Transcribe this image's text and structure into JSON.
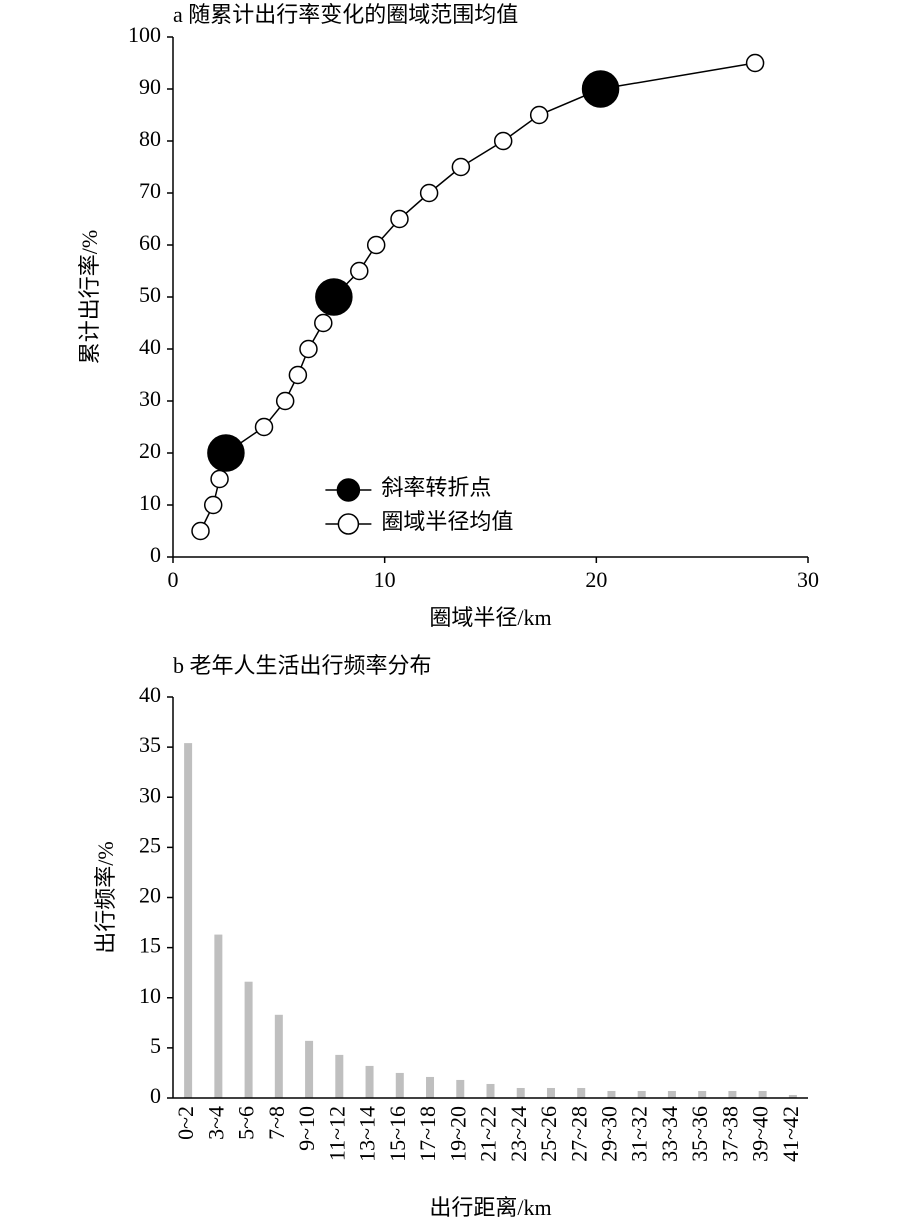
{
  "chart_data": [
    {
      "type": "line",
      "title": "a 随累计出行率变化的圈域范围均值",
      "x_label": "圈域半径/km",
      "y_label": "累计出行率/%",
      "xlim": [
        0,
        30
      ],
      "xticks": [
        0,
        10,
        20,
        30
      ],
      "ylim": [
        0,
        100
      ],
      "yticks": [
        0,
        10,
        20,
        30,
        40,
        50,
        60,
        70,
        80,
        90,
        100
      ],
      "legend": "lower center",
      "series": [
        {
          "name": "斜率转折点",
          "color": "#000000",
          "x": [
            2.5,
            7.6,
            20.2
          ],
          "values": [
            20,
            50,
            90
          ]
        },
        {
          "name": "圈域半径均值",
          "color": "#ffffff",
          "x": [
            1.3,
            1.9,
            2.2,
            2.5,
            4.3,
            5.3,
            5.9,
            6.4,
            7.1,
            7.6,
            8.8,
            9.6,
            10.7,
            12.1,
            13.6,
            15.6,
            17.3,
            20.2,
            27.5
          ],
          "values": [
            5,
            10,
            15,
            20,
            25,
            30,
            35,
            40,
            45,
            50,
            55,
            60,
            65,
            70,
            75,
            80,
            85,
            90,
            95
          ]
        }
      ]
    },
    {
      "type": "bar",
      "title": "b 老年人生活出行频率分布",
      "x_label": "出行距离/km",
      "y_label": "出行频率/%",
      "ylim": [
        0,
        40
      ],
      "yticks": [
        0,
        5,
        10,
        15,
        20,
        25,
        30,
        35,
        40
      ],
      "color": "#bfbfbf",
      "categories": [
        "0~2",
        "3~4",
        "5~6",
        "7~8",
        "9~10",
        "11~12",
        "13~14",
        "15~16",
        "17~18",
        "19~20",
        "21~22",
        "23~24",
        "25~26",
        "27~28",
        "29~30",
        "31~32",
        "33~34",
        "35~36",
        "37~38",
        "39~40",
        "41~42"
      ],
      "values": [
        35.4,
        16.3,
        11.6,
        8.3,
        5.7,
        4.3,
        3.2,
        2.5,
        2.1,
        1.8,
        1.4,
        1.0,
        1.0,
        1.0,
        0.7,
        0.7,
        0.7,
        0.7,
        0.7,
        0.7,
        0.3
      ]
    }
  ]
}
